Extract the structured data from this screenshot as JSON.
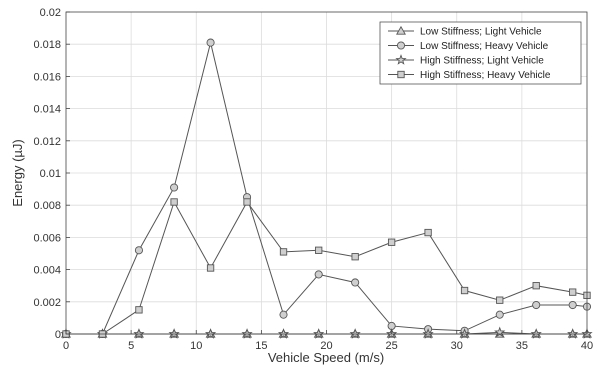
{
  "chart_data": {
    "type": "line",
    "title": "",
    "xlabel": "Vehicle Speed (m/s)",
    "ylabel": "Energy (µJ)",
    "xlim": [
      0,
      40
    ],
    "ylim": [
      0,
      0.02
    ],
    "xticks": [
      0,
      5,
      10,
      15,
      20,
      25,
      30,
      35,
      40
    ],
    "yticks": [
      0,
      0.002,
      0.004,
      0.006,
      0.008,
      0.01,
      0.012,
      0.014,
      0.016,
      0.018,
      0.02
    ],
    "xtick_labels": [
      "0",
      "5",
      "10",
      "15",
      "20",
      "25",
      "30",
      "35",
      "40"
    ],
    "ytick_labels": [
      "0",
      "0.002",
      "0.004",
      "0.006",
      "0.008",
      "0.01",
      "0.012",
      "0.014",
      "0.016",
      "0.018",
      "0.02"
    ],
    "grid": true,
    "legend_position": "top-right",
    "x": [
      0,
      2.8,
      5.6,
      8.3,
      11.1,
      13.9,
      16.7,
      19.4,
      22.2,
      25,
      27.8,
      30.6,
      33.3,
      36.1,
      38.9,
      40
    ],
    "series": [
      {
        "name": "Low Stiffness; Light Vehicle",
        "marker": "triangle",
        "values": [
          0,
          0,
          0,
          0,
          0,
          0,
          0,
          0,
          0,
          0,
          0,
          0,
          0,
          0,
          0,
          0
        ]
      },
      {
        "name": "Low Stiffness; Heavy Vehicle",
        "marker": "circle",
        "values": [
          0,
          0,
          0.0052,
          0.0091,
          0.0181,
          0.0085,
          0.0012,
          0.0037,
          0.0032,
          0.0005,
          0.0003,
          0.0002,
          0.0012,
          0.0018,
          0.0018,
          0.0017
        ]
      },
      {
        "name": "High Stiffness; Light Vehicle",
        "marker": "star",
        "values": [
          0,
          0,
          0,
          0,
          0,
          0,
          0,
          0,
          0,
          0,
          0,
          0,
          0.0001,
          0,
          0,
          0
        ]
      },
      {
        "name": "High Stiffness; Heavy Vehicle",
        "marker": "square",
        "values": [
          0,
          0,
          0.0015,
          0.0082,
          0.0041,
          0.0082,
          0.0051,
          0.0052,
          0.0048,
          0.0057,
          0.0063,
          0.0027,
          0.0021,
          0.003,
          0.0026,
          0.0024
        ]
      }
    ],
    "colors": {
      "line": "#555555",
      "marker_fill": "#cfcfcf",
      "grid": "#dcdcdc",
      "axis": "#444444"
    }
  }
}
